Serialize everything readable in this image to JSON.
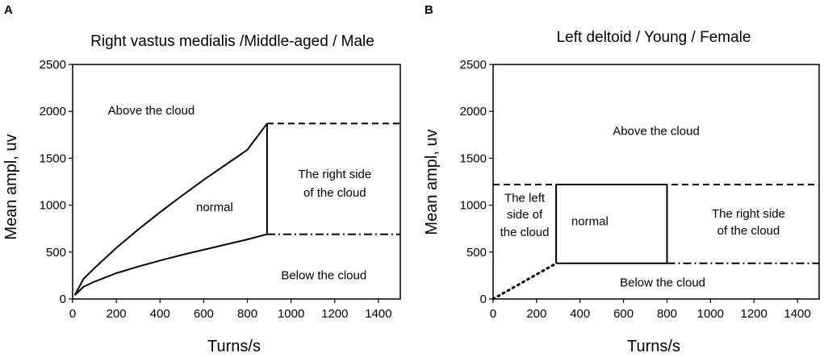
{
  "chart_data": [
    {
      "type": "line",
      "panel": "A",
      "title": "Right vastus medialis /Middle-aged / Male",
      "xlabel": "Turns/s",
      "ylabel": "Mean ampl, uv",
      "xlim": [
        0,
        1500
      ],
      "ylim": [
        0,
        2500
      ],
      "xticks": [
        0,
        200,
        400,
        600,
        800,
        1000,
        1200,
        1400
      ],
      "yticks": [
        0,
        500,
        1000,
        1500,
        2000,
        2500
      ],
      "series": [
        {
          "style": "solid",
          "x": [
            10,
            50,
            100,
            200,
            300,
            400,
            500,
            600,
            700,
            800,
            890
          ],
          "y": [
            40,
            215,
            330,
            545,
            740,
            925,
            1100,
            1270,
            1430,
            1590,
            1870
          ]
        },
        {
          "style": "solid",
          "x": [
            10,
            50,
            100,
            200,
            300,
            400,
            500,
            600,
            700,
            800,
            890
          ],
          "y": [
            40,
            130,
            185,
            275,
            345,
            410,
            470,
            525,
            580,
            635,
            690
          ]
        },
        {
          "style": "solid",
          "x": [
            890,
            890
          ],
          "y": [
            690,
            1870
          ]
        },
        {
          "style": "dashed",
          "x": [
            890,
            1500
          ],
          "y": [
            1870,
            1870
          ]
        },
        {
          "style": "dashdot",
          "x": [
            890,
            1500
          ],
          "y": [
            690,
            690
          ]
        }
      ],
      "annotations": [
        {
          "text": "Above the cloud",
          "x": 360,
          "y": 2010
        },
        {
          "text": "normal",
          "x": 650,
          "y": 980
        },
        {
          "text": "The right side",
          "x": 1200,
          "y": 1330
        },
        {
          "text": "of the cloud",
          "x": 1200,
          "y": 1135
        },
        {
          "text": "Below the cloud",
          "x": 1150,
          "y": 255
        }
      ]
    },
    {
      "type": "line",
      "panel": "B",
      "title": "Left deltoid / Young / Female",
      "xlabel": "Turns/s",
      "ylabel": "Mean ampl, uv",
      "xlim": [
        0,
        1500
      ],
      "ylim": [
        0,
        2500
      ],
      "xticks": [
        0,
        200,
        400,
        600,
        800,
        1000,
        1200,
        1400
      ],
      "yticks": [
        0,
        500,
        1000,
        1500,
        2000,
        2500
      ],
      "series": [
        {
          "style": "dashed",
          "x": [
            0,
            1500
          ],
          "y": [
            1220,
            1220
          ]
        },
        {
          "style": "dashdot",
          "x": [
            800,
            1500
          ],
          "y": [
            380,
            380
          ]
        },
        {
          "style": "dotted",
          "x": [
            0,
            290
          ],
          "y": [
            0,
            380
          ]
        },
        {
          "style": "solid",
          "x": [
            290,
            800,
            800,
            290,
            290
          ],
          "y": [
            380,
            380,
            1220,
            1220,
            380
          ]
        }
      ],
      "annotations": [
        {
          "text": "Above the cloud",
          "x": 750,
          "y": 1790
        },
        {
          "text": "The left",
          "x": 145,
          "y": 1080
        },
        {
          "text": "side of",
          "x": 145,
          "y": 900
        },
        {
          "text": "the cloud",
          "x": 145,
          "y": 715
        },
        {
          "text": "normal",
          "x": 445,
          "y": 830
        },
        {
          "text": "The right side",
          "x": 1175,
          "y": 910
        },
        {
          "text": "of the cloud",
          "x": 1175,
          "y": 730
        },
        {
          "text": "Below the cloud",
          "x": 780,
          "y": 175
        }
      ]
    }
  ]
}
